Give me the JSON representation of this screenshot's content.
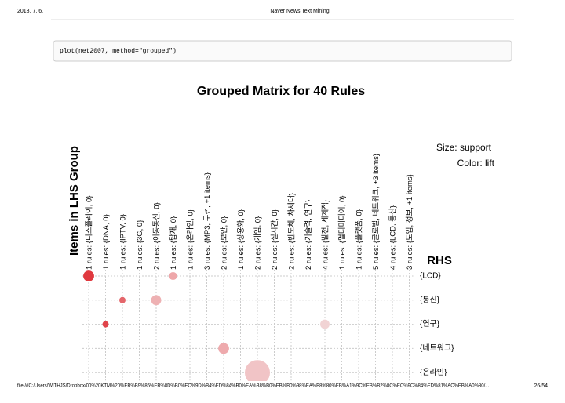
{
  "header": {
    "date": "2018. 7. 6.",
    "title": "Naver News Text Mining"
  },
  "code": "plot(net2007, method=\"grouped\")",
  "chart_data": {
    "type": "grouped-matrix",
    "title": "Grouped Matrix for 40 Rules",
    "y_label": "Items in LHS Group",
    "x_label": "RHS",
    "size_label": "Size: support",
    "color_label": "Color: lift",
    "lhs_groups": [
      "1 rules: {디스플레이, 0}",
      "1 rules: {DNA, 0}",
      "1 rules: {IPTV, 0}",
      "1 rules: {3G, 0}",
      "2 rules: {이동통신, 0}",
      "1 rules: {탑재, 0}",
      "1 rules: {온라인, 0}",
      "3 rules: {MP3, 무선, +1 items}",
      "2 rules: {보안, 0}",
      "1 rules: {상용화, 0}",
      "2 rules: {게임, 0}",
      "2 rules: {실시간, 0}",
      "2 rules: {반도체, 차세대}",
      "2 rules: {기술력, 연구}",
      "4 rules: {발전, 세계적}",
      "1 rules: {멀티미디어, 0}",
      "1 rules: {플랫폼, 0}",
      "5 rules: {글로벌, 네트워크, +3 items}",
      "4 rules: {LCD, 통신}",
      "3 rules: {도입, 정보, +1 items}"
    ],
    "series": [
      {
        "name": "{LCD}",
        "values": [
          0.015,
          null,
          null,
          null,
          null,
          0.008,
          null,
          null,
          null,
          null,
          null,
          null,
          null,
          null,
          null,
          null,
          null,
          null,
          null,
          null
        ],
        "colors": [
          "#e0393f",
          null,
          null,
          null,
          null,
          "#eea7aa",
          null,
          null,
          null,
          null,
          null,
          null,
          null,
          null,
          null,
          null,
          null,
          null,
          null,
          null
        ]
      },
      {
        "name": "{통신}",
        "values": [
          null,
          null,
          0.005,
          null,
          0.013,
          null,
          null,
          null,
          null,
          null,
          null,
          null,
          null,
          null,
          null,
          null,
          null,
          null,
          null,
          null
        ],
        "colors": [
          null,
          null,
          "#e4666b",
          null,
          "#eeb1b3",
          null,
          null,
          null,
          null,
          null,
          null,
          null,
          null,
          null,
          null,
          null,
          null,
          null,
          null,
          null
        ]
      },
      {
        "name": "{연구}",
        "values": [
          null,
          0.005,
          null,
          null,
          null,
          null,
          null,
          null,
          null,
          null,
          null,
          null,
          null,
          null,
          0.011,
          null,
          null,
          null,
          null,
          null
        ],
        "colors": [
          null,
          "#e0444a",
          null,
          null,
          null,
          null,
          null,
          null,
          null,
          null,
          null,
          null,
          null,
          null,
          "#f1d3d4",
          null,
          null,
          null,
          null,
          null
        ]
      },
      {
        "name": "{네트워크}",
        "values": [
          null,
          null,
          null,
          null,
          null,
          null,
          null,
          null,
          0.015,
          null,
          null,
          null,
          null,
          null,
          null,
          null,
          null,
          null,
          null,
          null
        ],
        "colors": [
          null,
          null,
          null,
          null,
          null,
          null,
          null,
          null,
          "#eeaaad",
          null,
          null,
          null,
          null,
          null,
          null,
          null,
          null,
          null,
          null,
          null
        ]
      },
      {
        "name": "{온라인}",
        "values": [
          null,
          null,
          null,
          null,
          null,
          null,
          null,
          null,
          null,
          null,
          0.08,
          null,
          null,
          null,
          null,
          null,
          null,
          null,
          null,
          null
        ],
        "colors": [
          null,
          null,
          null,
          null,
          null,
          null,
          null,
          null,
          null,
          null,
          "#f1c4c6",
          null,
          null,
          null,
          null,
          null,
          null,
          null,
          null,
          null
        ]
      }
    ]
  },
  "footer": {
    "url": "file:///C:/Users/WITHJS/Dropbox/00%20KTM%20%EB%B9%85%EB%8D%B0%EC%9D%B4%ED%84%B0%EA%B8%B0%EB%B0%98%EA%B8%80%EB%A1%9C%EB%B2%8C%EC%9C%84%ED%81%AC%EB%A0%80/...",
    "page": "26/54"
  }
}
